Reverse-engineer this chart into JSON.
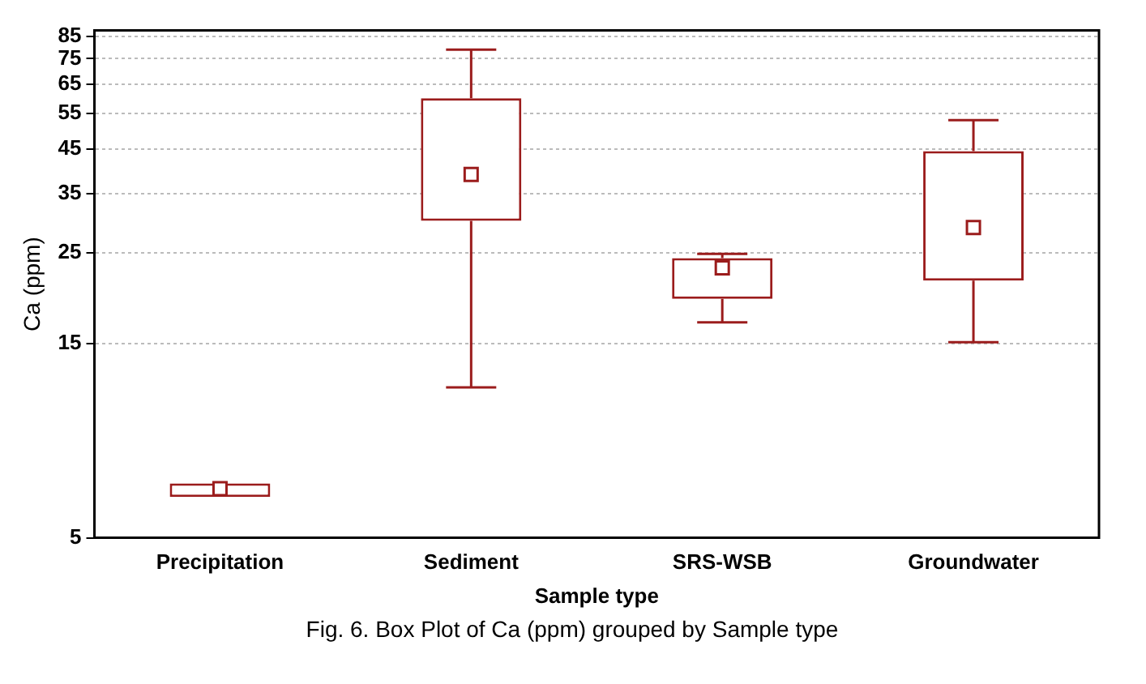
{
  "chart_data": {
    "type": "box",
    "xlabel": "Sample type",
    "ylabel": "Ca (ppm)",
    "annotations": [
      "Fig. 6. Box Plot of Ca (ppm) grouped by  Sample type"
    ],
    "categories": [
      "Precipitation",
      "Sediment",
      "SRS-WSB",
      "Groundwater"
    ],
    "log": "y",
    "ylim": [
      5,
      88
    ],
    "yticks": [
      5,
      15,
      25,
      35,
      45,
      55,
      65,
      75,
      85
    ],
    "grid": "y",
    "marker": "square",
    "series": [
      {
        "color": "#9b1c1c",
        "boxes": [
          {
            "low": 6.3,
            "q1": 6.3,
            "median": 6.6,
            "q3": 6.8,
            "high": 6.8
          },
          {
            "low": 11.7,
            "q1": 30,
            "median": 39,
            "q3": 60,
            "high": 79
          },
          {
            "low": 16.9,
            "q1": 19.3,
            "median": 23,
            "q3": 24.3,
            "high": 24.9
          },
          {
            "low": 15.1,
            "q1": 21.4,
            "median": 28.9,
            "q3": 44.5,
            "high": 53
          }
        ]
      }
    ]
  }
}
